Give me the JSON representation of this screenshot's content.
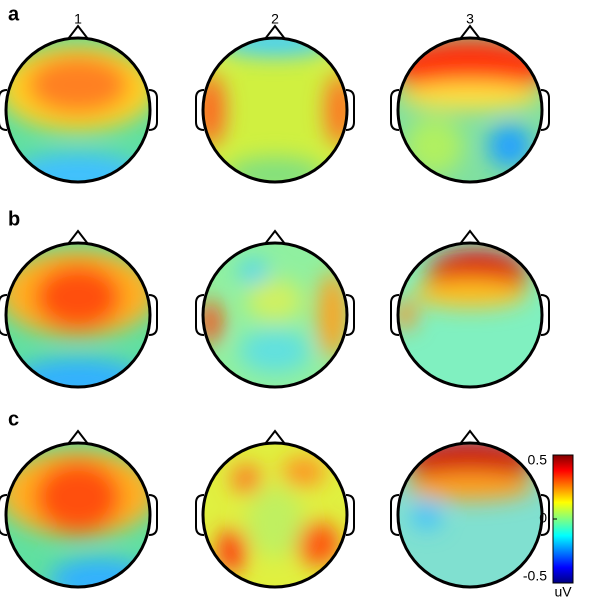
{
  "columns": [
    "1",
    "2",
    "3"
  ],
  "rows": [
    "a",
    "b",
    "c"
  ],
  "colorbar": {
    "lim": [
      -0.5,
      0.5
    ],
    "ticks": [
      0.5,
      0,
      -0.5
    ],
    "label": "uV"
  }
}
